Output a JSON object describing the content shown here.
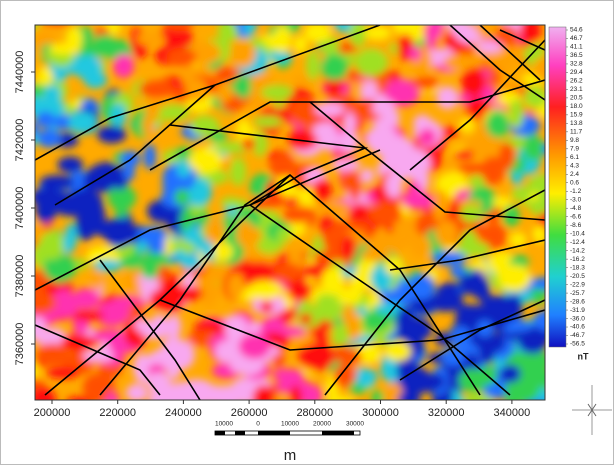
{
  "map": {
    "xticks": [
      "200000",
      "220000",
      "240000",
      "260000",
      "280000",
      "300000",
      "320000",
      "340000"
    ],
    "yticks": [
      "7440000",
      "7420000",
      "7400000",
      "7380000",
      "7360000"
    ]
  },
  "colorbar": {
    "labels": [
      "54.6",
      "46.7",
      "41.1",
      "36.5",
      "32.8",
      "29.4",
      "26.2",
      "23.1",
      "20.5",
      "18.0",
      "15.9",
      "13.8",
      "11.7",
      "9.8",
      "7.9",
      "6.1",
      "4.3",
      "2.4",
      "0.6",
      "-1.2",
      "-3.0",
      "-4.8",
      "-6.6",
      "-8.6",
      "-10.4",
      "-12.4",
      "-14.2",
      "-16.2",
      "-18.3",
      "-20.5",
      "-22.9",
      "-25.7",
      "-28.6",
      "-31.9",
      "-36.0",
      "-40.6",
      "-46.7",
      "-56.5"
    ],
    "unit": "nT"
  },
  "scale_bar": {
    "labels": [
      "10000",
      "0",
      "10000",
      "20000",
      "30000"
    ],
    "unit": "m"
  }
}
